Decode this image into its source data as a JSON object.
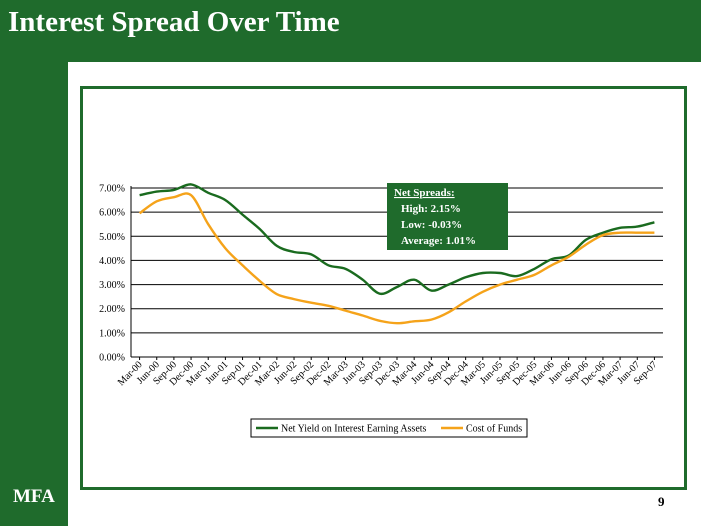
{
  "slide": {
    "title": "Interest Spread Over Time",
    "logo": "MFA",
    "page_number": "9"
  },
  "colors": {
    "band": "#1f6b2c",
    "series_net_yield": "#1a6b1f",
    "series_cost_of_funds": "#f5a31a"
  },
  "chart_data": {
    "type": "line",
    "x": [
      "Mar-00",
      "Jun-00",
      "Sep-00",
      "Dec-00",
      "Mar-01",
      "Jun-01",
      "Sep-01",
      "Dec-01",
      "Mar-02",
      "Jun-02",
      "Sep-02",
      "Dec-02",
      "Mar-03",
      "Jun-03",
      "Sep-03",
      "Dec-03",
      "Mar-04",
      "Jun-04",
      "Sep-04",
      "Dec-04",
      "Mar-05",
      "Jun-05",
      "Sep-05",
      "Dec-05",
      "Mar-06",
      "Jun-06",
      "Sep-06",
      "Dec-06",
      "Mar-07",
      "Jun-07",
      "Sep-07"
    ],
    "series": [
      {
        "name": "Net Yield on Interest Earning Assets",
        "values": [
          6.7,
          6.85,
          6.92,
          7.15,
          6.8,
          6.5,
          5.9,
          5.3,
          4.6,
          4.35,
          4.25,
          3.8,
          3.65,
          3.2,
          2.62,
          2.9,
          3.2,
          2.75,
          3.0,
          3.3,
          3.48,
          3.48,
          3.35,
          3.65,
          4.05,
          4.2,
          4.85,
          5.15,
          5.35,
          5.4,
          5.58
        ]
      },
      {
        "name": "Cost of Funds",
        "values": [
          5.95,
          6.45,
          6.62,
          6.7,
          5.5,
          4.5,
          3.8,
          3.15,
          2.6,
          2.4,
          2.25,
          2.12,
          1.92,
          1.72,
          1.5,
          1.4,
          1.48,
          1.55,
          1.85,
          2.3,
          2.7,
          3.0,
          3.2,
          3.4,
          3.8,
          4.15,
          4.65,
          5.05,
          5.15,
          5.15,
          5.15
        ]
      }
    ],
    "yticks": [
      "0.00%",
      "1.00%",
      "2.00%",
      "3.00%",
      "4.00%",
      "5.00%",
      "6.00%",
      "7.00%"
    ],
    "ylim": [
      0,
      7
    ],
    "grid": true,
    "legend": "bottom-center",
    "annotation": {
      "title": "Net Spreads:",
      "lines": [
        "High:  2.15%",
        "Low:  -0.03%",
        "Average:  1.01%"
      ]
    }
  }
}
